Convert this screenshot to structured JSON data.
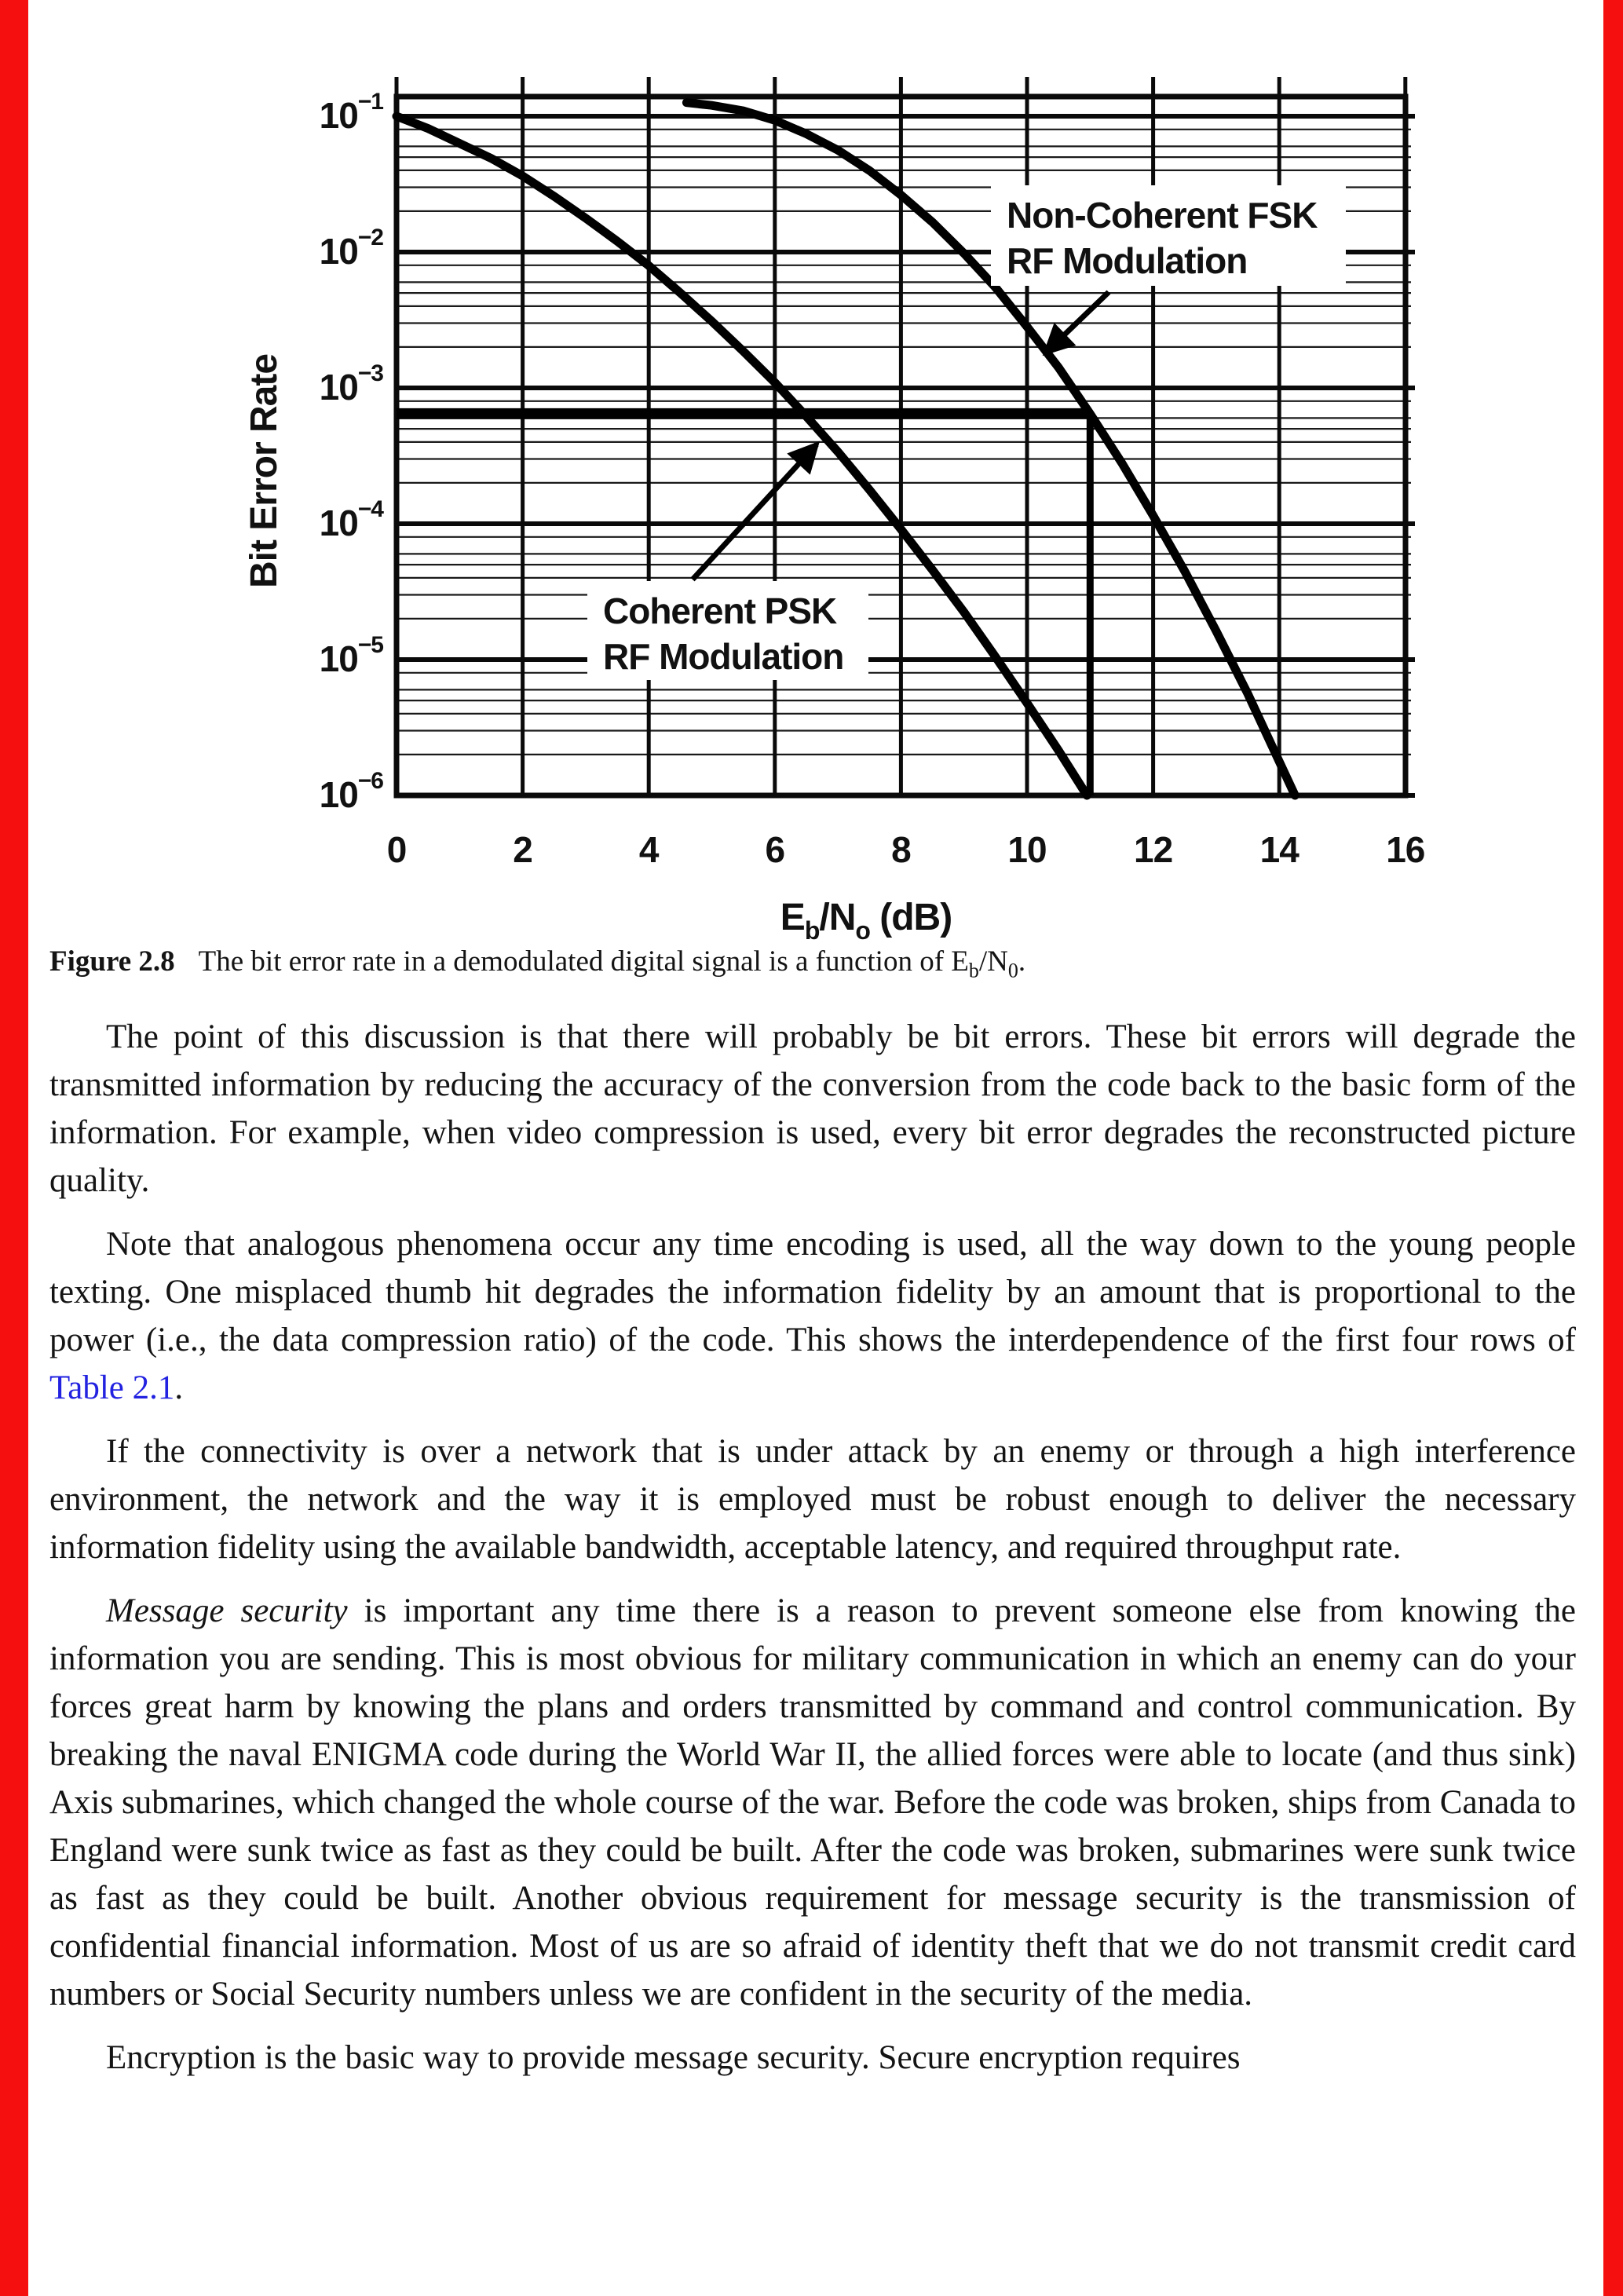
{
  "page": {
    "left_edge_bar_color": "#f50f0f",
    "right_edge_bar_color": "#f50f0f",
    "link_color": "#2222e0"
  },
  "chart_data": {
    "type": "line",
    "title": "",
    "ylabel": "Bit Error Rate",
    "xlabel_runs": [
      {
        "t": "E"
      },
      {
        "t": "b",
        "s": "sub"
      },
      {
        "t": "/N"
      },
      {
        "t": "o",
        "s": "sub"
      },
      {
        "t": " (dB)"
      }
    ],
    "xlim": [
      0,
      16
    ],
    "x_ticks": [
      "0",
      "2",
      "4",
      "6",
      "8",
      "10",
      "12",
      "14",
      "16"
    ],
    "ylog_range": [
      -6,
      -1
    ],
    "y_ticks": [
      {
        "base": "10",
        "exp": "−1"
      },
      {
        "base": "10",
        "exp": "−2"
      },
      {
        "base": "10",
        "exp": "−3"
      },
      {
        "base": "10",
        "exp": "−4"
      },
      {
        "base": "10",
        "exp": "−5"
      },
      {
        "base": "10",
        "exp": "−6"
      }
    ],
    "grid": "log minor + major, boxed",
    "legend_position": "inline labels with arrows",
    "series": [
      {
        "name": "Coherent PSK RF Modulation",
        "x": [
          0,
          0.5,
          1,
          1.5,
          2,
          2.5,
          3,
          3.5,
          4,
          4.5,
          5,
          5.5,
          6,
          6.5,
          7,
          7.5,
          8,
          8.5,
          9,
          9.5,
          10,
          10.5,
          10.95
        ],
        "log10_ber": [
          -1.0,
          -1.09,
          -1.2,
          -1.31,
          -1.44,
          -1.59,
          -1.75,
          -1.92,
          -2.1,
          -2.3,
          -2.51,
          -2.73,
          -2.96,
          -3.21,
          -3.47,
          -3.75,
          -4.04,
          -4.34,
          -4.65,
          -4.98,
          -5.32,
          -5.67,
          -6.0
        ]
      },
      {
        "name": "Non-Coherent FSK RF Modulation",
        "x": [
          4.6,
          5,
          5.5,
          6,
          6.5,
          7,
          7.5,
          8,
          8.5,
          9,
          9.5,
          10,
          10.5,
          11,
          11.5,
          12,
          12.5,
          13,
          13.5,
          14,
          14.25
        ],
        "log10_ber": [
          -0.9,
          -0.92,
          -0.96,
          -1.03,
          -1.13,
          -1.25,
          -1.4,
          -1.58,
          -1.78,
          -2.01,
          -2.26,
          -2.55,
          -2.85,
          -3.19,
          -3.55,
          -3.94,
          -4.35,
          -4.79,
          -5.25,
          -5.75,
          -6.0
        ]
      }
    ],
    "annotations": {
      "reference_hline": {
        "log10_ber": -3.19,
        "x_from": 0,
        "x_to": 11
      },
      "reference_vline": {
        "x": 11,
        "log10_from": -3.19,
        "log10_to": -6
      },
      "curve_labels": [
        {
          "lines": [
            "Non-Coherent FSK",
            "RF Modulation"
          ],
          "points_to": "Non-Coherent FSK curve"
        },
        {
          "lines": [
            "Coherent PSK",
            "RF Modulation"
          ],
          "points_to": "Coherent PSK curve"
        }
      ]
    }
  },
  "caption": {
    "runs": [
      {
        "t": "Figure 2.8",
        "s": "b"
      },
      {
        "t": "The bit error rate in a demodulated digital signal is a function of E"
      },
      {
        "t": "b",
        "s": "sub"
      },
      {
        "t": "/N"
      },
      {
        "t": "0",
        "s": "sub"
      },
      {
        "t": "."
      }
    ]
  },
  "body": {
    "paragraphs": [
      {
        "runs": [
          {
            "t": "The point of this discussion is that there will probably be bit errors. These bit errors will degrade the transmitted information by reducing the accuracy of the conversion from the code back to the basic form of the information. For example, when video compression is used, every bit error degrades the reconstructed picture quality."
          }
        ]
      },
      {
        "runs": [
          {
            "t": "Note that analogous phenomena occur any time encoding is used, all the way down to the young people texting. One misplaced thumb hit degrades the information fidelity by an amount that is proportional to the power (i.e., the data compression ratio) of the code. This shows the interdependence of the first four rows of "
          },
          {
            "t": "Table 2.1",
            "s": "link"
          },
          {
            "t": "."
          }
        ]
      },
      {
        "runs": [
          {
            "t": "If the connectivity is over a network that is under attack by an enemy or through a high interference environment, the network and the way it is employed must be robust enough to deliver the necessary information fidelity using the available bandwidth, acceptable latency, and required throughput rate."
          }
        ]
      },
      {
        "runs": [
          {
            "t": "Message security",
            "s": "i"
          },
          {
            "t": " is important any time there is a reason to prevent someone else from knowing the information you are sending. This is most obvious for military communication in which an enemy can do your forces great harm by knowing the plans and orders transmitted by command and control communication. By breaking the naval ENIGMA code during the World War II, the allied forces were able to locate (and thus sink) Axis submarines, which changed the whole course of the war. Before the code was broken, ships from Canada to England were sunk twice as fast as they could be built. After the code was broken, submarines were sunk twice as fast as they could be built. Another obvious requirement for message security is the transmission of confidential financial information. Most of us are so afraid of identity theft that we do not transmit credit card numbers or Social Security numbers unless we are confident in the security of the media."
          }
        ]
      },
      {
        "runs": [
          {
            "t": "Encryption is the basic way to provide message security. Secure encryption requires"
          }
        ]
      }
    ]
  }
}
